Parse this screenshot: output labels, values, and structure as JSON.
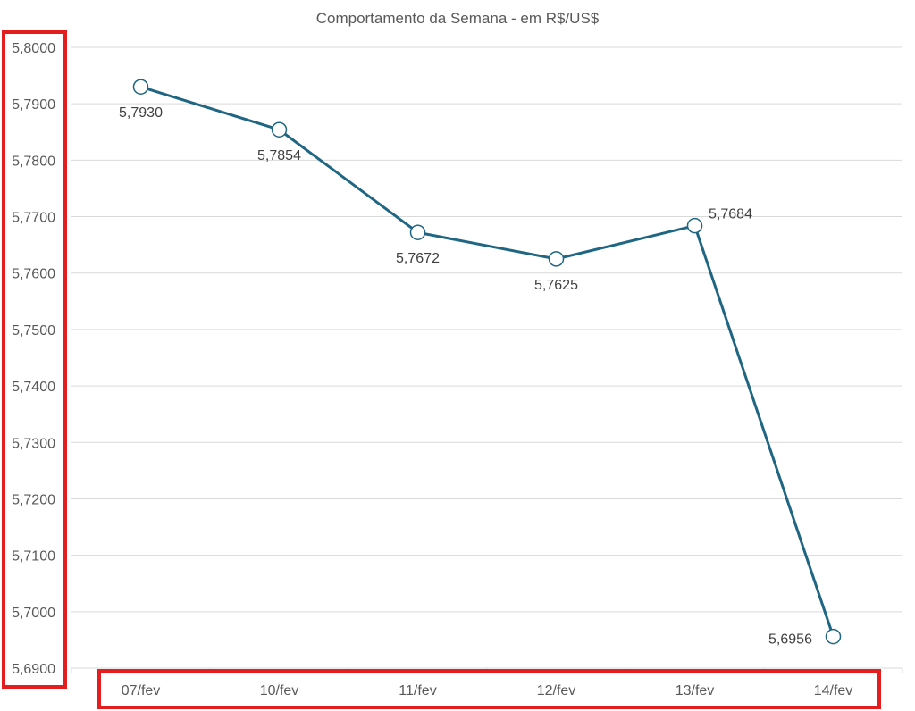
{
  "chart_data": {
    "type": "line",
    "title": "Comportamento da Semana - em R$/US$",
    "xlabel": "",
    "ylabel": "",
    "categories": [
      "07/fev",
      "10/fev",
      "11/fev",
      "12/fev",
      "13/fev",
      "14/fev"
    ],
    "series": [
      {
        "name": "R$/US$",
        "values": [
          5.793,
          5.7854,
          5.7672,
          5.7625,
          5.7684,
          5.6956
        ],
        "labels": [
          "5,7930",
          "5,7854",
          "5,7672",
          "5,7625",
          "5,7684",
          "5,6956"
        ]
      }
    ],
    "ylim": [
      5.69,
      5.8
    ],
    "yticks": [
      5.8,
      5.79,
      5.78,
      5.77,
      5.76,
      5.75,
      5.74,
      5.73,
      5.72,
      5.71,
      5.7,
      5.69
    ],
    "ytick_labels": [
      "5,8000",
      "5,7900",
      "5,7800",
      "5,7700",
      "5,7600",
      "5,7500",
      "5,7400",
      "5,7300",
      "5,7200",
      "5,7100",
      "5,7000",
      "5,6900"
    ],
    "grid": true,
    "legend": "none",
    "colors": {
      "line": "#1f6682",
      "grid": "#d9d9d9",
      "highlight": "#e41e1e"
    }
  }
}
